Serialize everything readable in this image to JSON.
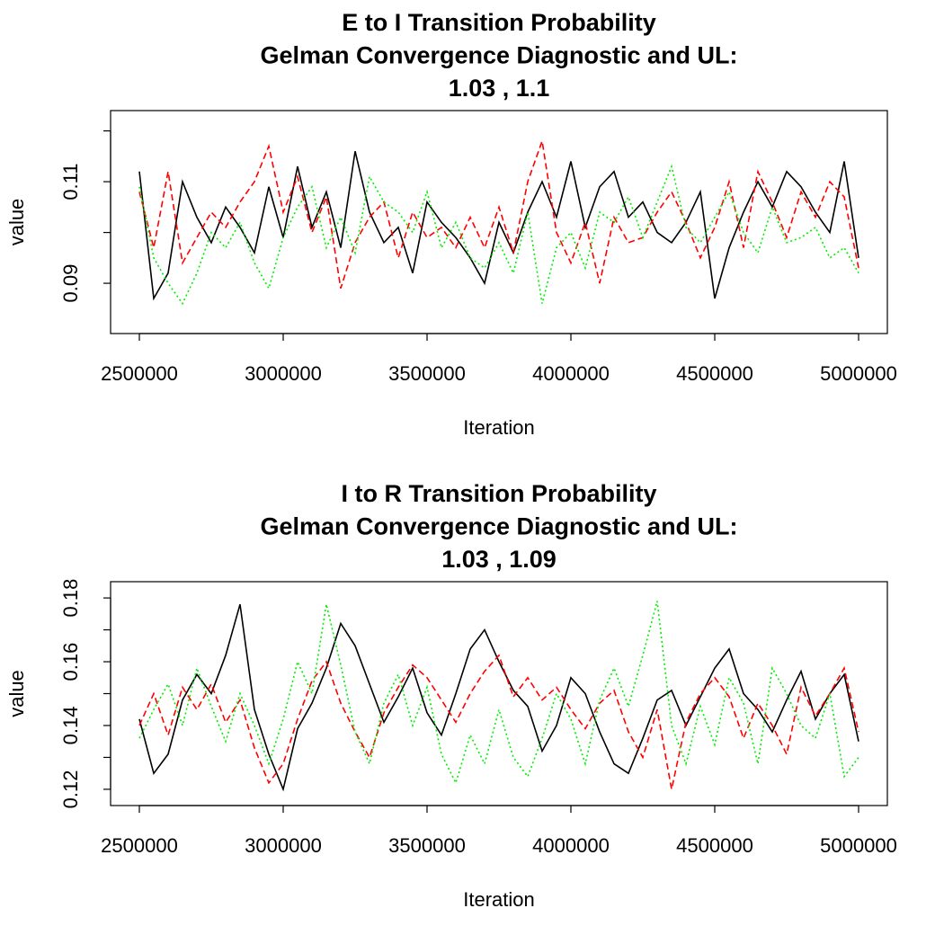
{
  "chart_data": [
    {
      "type": "line",
      "title": [
        "E to I Transition Probability",
        "Gelman Convergence Diagnostic and UL:",
        "1.03 ,  1.1"
      ],
      "xlabel": "Iteration",
      "ylabel": "value",
      "xlim": [
        2400000,
        5100000
      ],
      "xticks": [
        2500000,
        3000000,
        3500000,
        4000000,
        4500000,
        5000000
      ],
      "ylim": [
        0.0801,
        0.124
      ],
      "yticks": [
        0.09,
        0.11
      ],
      "yminorticks": [
        0.1,
        0.12
      ],
      "x": [
        2500000,
        2550000,
        2600000,
        2650000,
        2700000,
        2750000,
        2800000,
        2850000,
        2900000,
        2950000,
        3000000,
        3050000,
        3100000,
        3150000,
        3200000,
        3250000,
        3300000,
        3350000,
        3400000,
        3450000,
        3500000,
        3550000,
        3600000,
        3650000,
        3700000,
        3750000,
        3800000,
        3850000,
        3900000,
        3950000,
        4000000,
        4050000,
        4100000,
        4150000,
        4200000,
        4250000,
        4300000,
        4350000,
        4400000,
        4450000,
        4500000,
        4550000,
        4600000,
        4650000,
        4700000,
        4750000,
        4800000,
        4850000,
        4900000,
        4950000,
        5000000
      ],
      "series": [
        {
          "color": "#000000",
          "line_style": "solid",
          "values": [
            0.112,
            0.087,
            0.092,
            0.11,
            0.103,
            0.098,
            0.105,
            0.101,
            0.096,
            0.109,
            0.099,
            0.113,
            0.101,
            0.108,
            0.097,
            0.116,
            0.104,
            0.098,
            0.101,
            0.092,
            0.106,
            0.102,
            0.099,
            0.095,
            0.09,
            0.102,
            0.096,
            0.104,
            0.11,
            0.103,
            0.114,
            0.101,
            0.109,
            0.112,
            0.103,
            0.106,
            0.1,
            0.098,
            0.102,
            0.108,
            0.087,
            0.097,
            0.104,
            0.11,
            0.105,
            0.112,
            0.109,
            0.104,
            0.1,
            0.114,
            0.095
          ]
        },
        {
          "color": "#ff0000",
          "line_style": "dashed",
          "values": [
            0.108,
            0.097,
            0.112,
            0.094,
            0.099,
            0.104,
            0.101,
            0.106,
            0.11,
            0.117,
            0.104,
            0.111,
            0.1,
            0.107,
            0.089,
            0.098,
            0.103,
            0.106,
            0.095,
            0.104,
            0.099,
            0.101,
            0.097,
            0.103,
            0.097,
            0.105,
            0.096,
            0.11,
            0.118,
            0.1,
            0.094,
            0.102,
            0.09,
            0.103,
            0.098,
            0.099,
            0.104,
            0.108,
            0.102,
            0.095,
            0.101,
            0.11,
            0.097,
            0.112,
            0.106,
            0.099,
            0.108,
            0.103,
            0.11,
            0.107,
            0.093
          ]
        },
        {
          "color": "#00ee00",
          "line_style": "dotted",
          "values": [
            0.109,
            0.095,
            0.09,
            0.086,
            0.092,
            0.1,
            0.097,
            0.102,
            0.094,
            0.089,
            0.099,
            0.105,
            0.109,
            0.097,
            0.103,
            0.096,
            0.111,
            0.106,
            0.104,
            0.1,
            0.108,
            0.097,
            0.102,
            0.095,
            0.093,
            0.098,
            0.092,
            0.104,
            0.086,
            0.097,
            0.1,
            0.093,
            0.104,
            0.102,
            0.107,
            0.099,
            0.106,
            0.113,
            0.101,
            0.098,
            0.103,
            0.108,
            0.1,
            0.096,
            0.105,
            0.098,
            0.099,
            0.101,
            0.095,
            0.097,
            0.092
          ]
        }
      ]
    },
    {
      "type": "line",
      "title": [
        "I to R Transition Probability",
        "Gelman Convergence Diagnostic and UL:",
        "1.03 ,  1.09"
      ],
      "xlabel": "Iteration",
      "ylabel": "value",
      "xlim": [
        2400000,
        5100000
      ],
      "xticks": [
        2500000,
        3000000,
        3500000,
        4000000,
        4500000,
        5000000
      ],
      "ylim": [
        0.1149,
        0.1851
      ],
      "yticks": [
        0.12,
        0.14,
        0.16,
        0.18
      ],
      "yminorticks": [
        0.13,
        0.15,
        0.17
      ],
      "x": [
        2500000,
        2550000,
        2600000,
        2650000,
        2700000,
        2750000,
        2800000,
        2850000,
        2900000,
        2950000,
        3000000,
        3050000,
        3100000,
        3150000,
        3200000,
        3250000,
        3300000,
        3350000,
        3400000,
        3450000,
        3500000,
        3550000,
        3600000,
        3650000,
        3700000,
        3750000,
        3800000,
        3850000,
        3900000,
        3950000,
        4000000,
        4050000,
        4100000,
        4150000,
        4200000,
        4250000,
        4300000,
        4350000,
        4400000,
        4450000,
        4500000,
        4550000,
        4600000,
        4650000,
        4700000,
        4750000,
        4800000,
        4850000,
        4900000,
        4950000,
        5000000
      ],
      "series": [
        {
          "color": "#000000",
          "line_style": "solid",
          "values": [
            0.142,
            0.125,
            0.131,
            0.148,
            0.156,
            0.15,
            0.162,
            0.178,
            0.145,
            0.131,
            0.12,
            0.139,
            0.147,
            0.158,
            0.172,
            0.165,
            0.153,
            0.141,
            0.149,
            0.158,
            0.144,
            0.137,
            0.15,
            0.164,
            0.17,
            0.16,
            0.151,
            0.146,
            0.132,
            0.14,
            0.155,
            0.15,
            0.138,
            0.128,
            0.125,
            0.136,
            0.148,
            0.151,
            0.14,
            0.149,
            0.158,
            0.164,
            0.15,
            0.145,
            0.138,
            0.148,
            0.157,
            0.142,
            0.15,
            0.156,
            0.135
          ]
        },
        {
          "color": "#ff0000",
          "line_style": "dashed",
          "values": [
            0.14,
            0.15,
            0.137,
            0.152,
            0.145,
            0.153,
            0.141,
            0.148,
            0.133,
            0.122,
            0.128,
            0.142,
            0.154,
            0.16,
            0.147,
            0.138,
            0.13,
            0.144,
            0.152,
            0.159,
            0.155,
            0.148,
            0.141,
            0.15,
            0.157,
            0.162,
            0.149,
            0.155,
            0.148,
            0.152,
            0.145,
            0.139,
            0.147,
            0.151,
            0.138,
            0.13,
            0.145,
            0.12,
            0.141,
            0.15,
            0.155,
            0.149,
            0.136,
            0.147,
            0.14,
            0.131,
            0.152,
            0.143,
            0.15,
            0.158,
            0.138
          ]
        },
        {
          "color": "#00ee00",
          "line_style": "dotted",
          "values": [
            0.136,
            0.145,
            0.153,
            0.14,
            0.158,
            0.146,
            0.135,
            0.15,
            0.14,
            0.128,
            0.142,
            0.16,
            0.15,
            0.178,
            0.159,
            0.138,
            0.128,
            0.147,
            0.156,
            0.14,
            0.152,
            0.131,
            0.122,
            0.137,
            0.128,
            0.145,
            0.13,
            0.124,
            0.136,
            0.15,
            0.142,
            0.128,
            0.148,
            0.158,
            0.146,
            0.162,
            0.179,
            0.14,
            0.128,
            0.146,
            0.134,
            0.155,
            0.147,
            0.128,
            0.158,
            0.15,
            0.14,
            0.136,
            0.15,
            0.124,
            0.13
          ]
        }
      ]
    }
  ]
}
